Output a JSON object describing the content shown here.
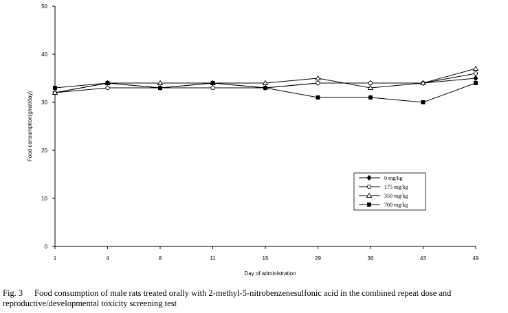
{
  "chart_data": {
    "type": "line",
    "xlabel": "Day of administration",
    "ylabel": "Food consumption(g/rat/day)",
    "categories": [
      "1",
      "4",
      "8",
      "11",
      "15",
      "29",
      "36",
      "43",
      "49"
    ],
    "ylim": [
      0,
      50
    ],
    "yticks": [
      0,
      10,
      20,
      30,
      40,
      50
    ],
    "grid": false,
    "legend_position": "lower-right",
    "series": [
      {
        "name": "0 mg/kg",
        "marker": "filled-diamond",
        "values": [
          32,
          34,
          33,
          34,
          33,
          34,
          34,
          34,
          35
        ]
      },
      {
        "name": "175 mg/kg",
        "marker": "open-circle",
        "values": [
          32,
          33,
          33,
          33,
          33,
          34,
          34,
          34,
          36
        ]
      },
      {
        "name": "350 mg/kg",
        "marker": "open-triangle",
        "values": [
          32,
          34,
          34,
          34,
          34,
          35,
          33,
          34,
          37
        ]
      },
      {
        "name": "700 mg/kg",
        "marker": "filled-square",
        "values": [
          33,
          34,
          33,
          34,
          33,
          31,
          31,
          30,
          34
        ]
      }
    ]
  },
  "caption": {
    "figure_number": "Fig. 3",
    "text": "Food consumption of male rats treated orally with 2-methyl-5-nitrobenzenesulfonic acid in the combined repeat dose and reproductive/developmental toxicity screening test"
  }
}
